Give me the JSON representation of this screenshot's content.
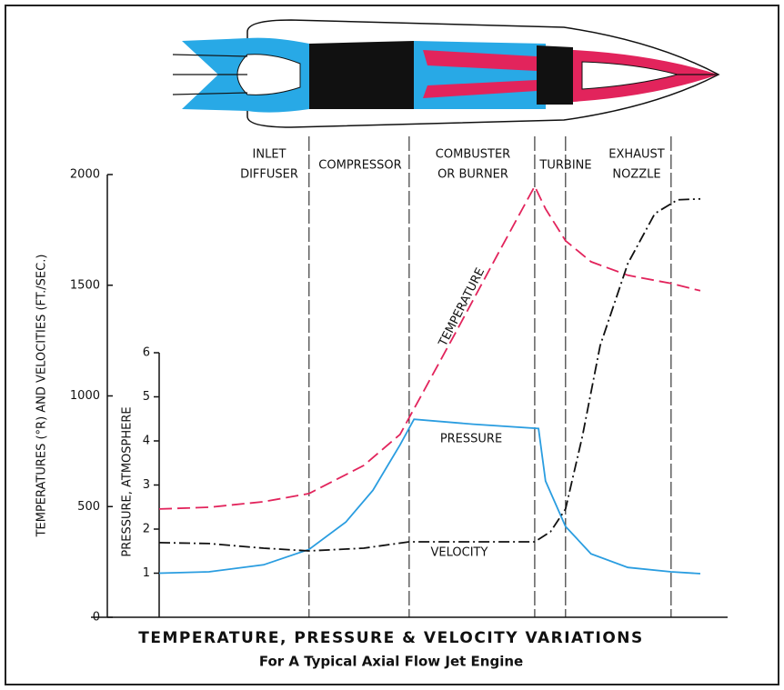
{
  "chart_data": {
    "type": "line",
    "title": "TEMPERATURE, PRESSURE & VELOCITY VARIATIONS",
    "subtitle": "For A Typical Axial Flow Jet Engine",
    "y_label": "TEMPERATURES (°R) AND VELOCITIES (FT./SEC.)",
    "y2_label": "PRESSURE, ATMOSPHERE",
    "xlim": [
      0,
      100
    ],
    "ylim": [
      0,
      2000
    ],
    "yticks": [
      0,
      500,
      1000,
      1500,
      2000
    ],
    "y2lim": [
      0,
      6
    ],
    "y2ticks": [
      1,
      2,
      3,
      4,
      5,
      6
    ],
    "sections": [
      {
        "lines": [
          "INLET",
          "DIFFUSER"
        ]
      },
      {
        "lines": [
          "COMPRESSOR"
        ]
      },
      {
        "lines": [
          "COMBUSTER",
          "OR BURNER"
        ]
      },
      {
        "lines": [
          "TURBINE"
        ]
      },
      {
        "lines": [
          "EXHAUST",
          "NOZZLE"
        ]
      }
    ],
    "section_boundaries": [
      27.7,
      46.2,
      69.4,
      75.1,
      94.6
    ],
    "series": [
      {
        "name": "TEMPERATURE",
        "color": "#e2245c",
        "style": "dashed",
        "x": [
          0,
          9.2,
          19.3,
          27.7,
          37.8,
          44.5,
          54.6,
          63.0,
          69.4,
          71.4,
          75.1,
          79.8,
          86.6,
          94.6,
          100
        ],
        "values": [
          489,
          497,
          522,
          559,
          686,
          826,
          1278,
          1660,
          1947,
          1845,
          1701,
          1606,
          1545,
          1508,
          1475
        ]
      },
      {
        "name": "PRESSURE",
        "color": "#2a9de0",
        "style": "solid",
        "axis": "y2",
        "x": [
          0,
          9.2,
          19.3,
          27.7,
          34.5,
          39.5,
          44.5,
          47.1,
          58.0,
          70.1,
          71.4,
          75.1,
          79.8,
          86.6,
          94.6,
          100
        ],
        "values": [
          1.0,
          1.03,
          1.19,
          1.54,
          2.16,
          2.88,
          3.91,
          4.49,
          4.38,
          4.28,
          3.09,
          2.06,
          1.44,
          1.13,
          1.03,
          0.99
        ]
      },
      {
        "name": "VELOCITY",
        "color": "#111111",
        "style": "dashdot",
        "x": [
          0,
          9.2,
          19.3,
          27.7,
          37.8,
          46.2,
          58.0,
          69.4,
          72.3,
          75.1,
          78.2,
          81.5,
          86.6,
          91.6,
          95.8,
          100
        ],
        "values": [
          337,
          333,
          312,
          300,
          312,
          341,
          341,
          341,
          386,
          489,
          817,
          1228,
          1598,
          1824,
          1886,
          1890
        ]
      }
    ]
  }
}
